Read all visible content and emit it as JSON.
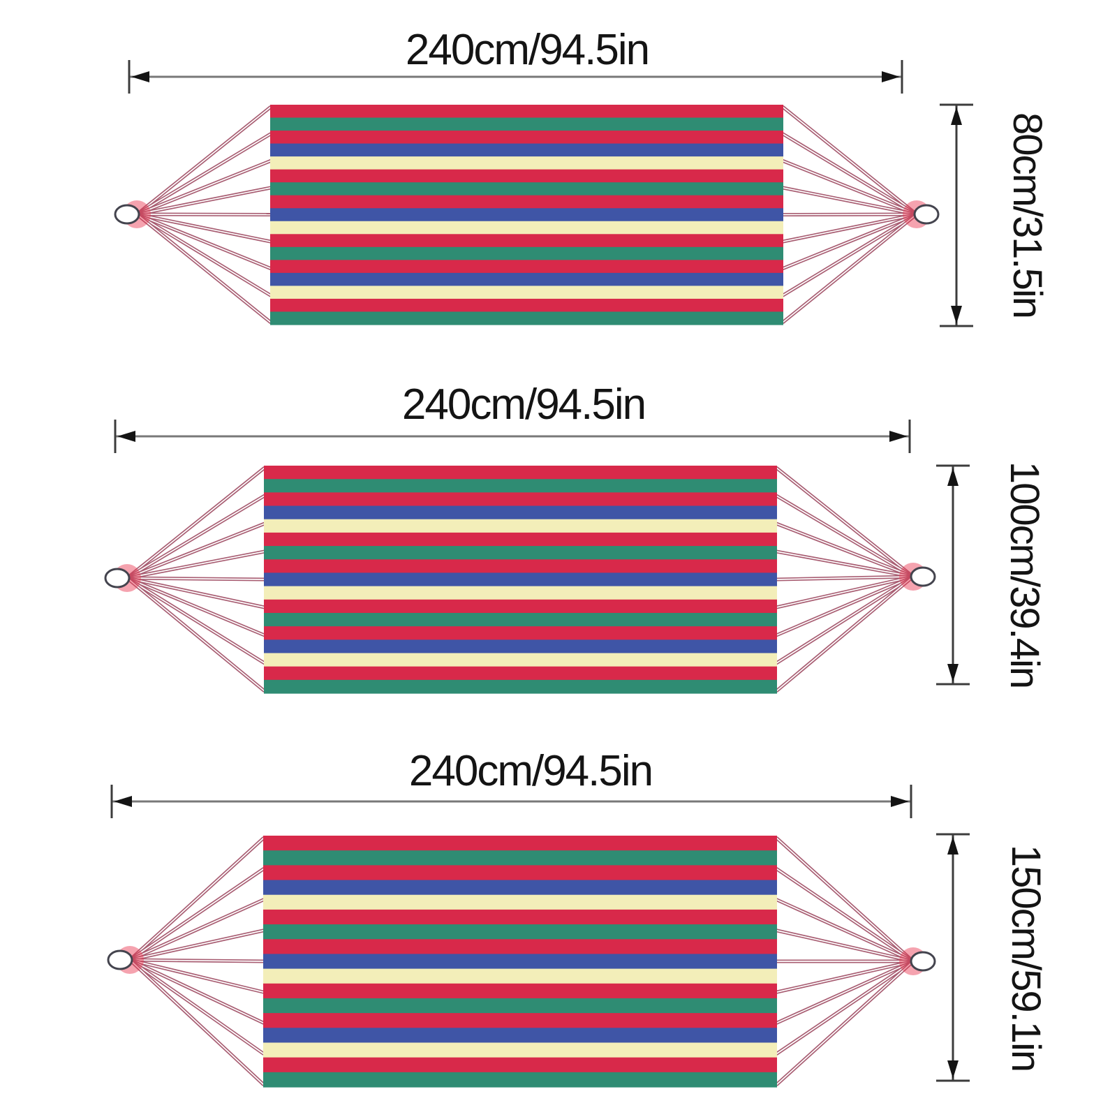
{
  "hammocks": [
    {
      "name": "hammock-80cm",
      "length_label": "240cm/94.5in",
      "width_label": "80cm/31.5in"
    },
    {
      "name": "hammock-100cm",
      "length_label": "240cm/94.5in",
      "width_label": "100cm/39.4in"
    },
    {
      "name": "hammock-150cm",
      "length_label": "240cm/94.5in",
      "width_label": "150cm/59.1in"
    }
  ],
  "fabric": {
    "stripe_pattern": [
      "red",
      "green",
      "red",
      "blue",
      "cream",
      "red",
      "green",
      "red",
      "blue",
      "cream",
      "red",
      "green",
      "red",
      "blue",
      "cream",
      "red",
      "green"
    ],
    "palette": {
      "red": "#d8294a",
      "green": "#2f8c73",
      "blue": "#3f55a6",
      "cream": "#f3eeb9"
    }
  },
  "style": {
    "rope_color": "#a85d72",
    "rope_glow": "#e8334d",
    "ring_fill": "#ffffff",
    "ring_stroke": "#44444e",
    "dim_line_color": "#787878",
    "dim_tick_color": "#3c3c3c",
    "arrow_color": "#141414",
    "text_color": "#141414",
    "background": "#ffffff"
  }
}
